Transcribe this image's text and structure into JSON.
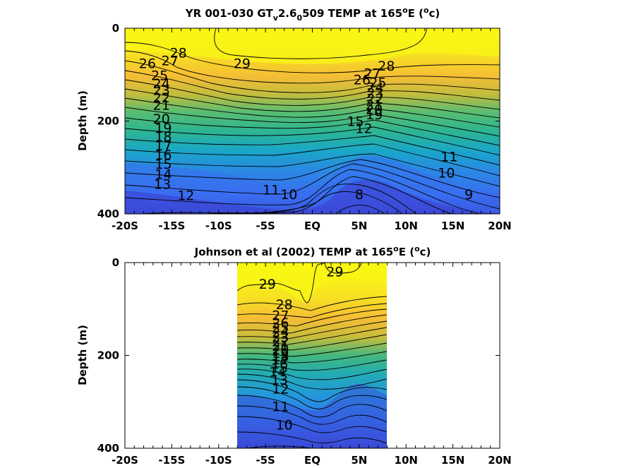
{
  "colors": {
    "warm": "#f9fb0e",
    "orange": "#f5bd35",
    "green": "#2fb58f",
    "cyan": "#1aa7c8",
    "blue": "#3a6ef0",
    "deep": "#3c3fd0",
    "contour": "#000000"
  },
  "chart_data": [
    {
      "type": "heatmap",
      "title_parts": {
        "a": "YR 001-030 GT",
        "sub_v": "v",
        "b": "2.6",
        "sub_0": "0",
        "c": "509 TEMP at 165",
        "sup_o": "o",
        "d": "E (",
        "sup_o2": "o",
        "e": "c)"
      },
      "ylabel": "Depth (m)",
      "xlabel": "",
      "x_ticks": [
        "-20S",
        "-15S",
        "-10S",
        "-5S",
        "EQ",
        "5N",
        "10N",
        "15N",
        "20N"
      ],
      "x_tick_values": [
        -20,
        -15,
        -10,
        -5,
        0,
        5,
        10,
        15,
        20
      ],
      "y_ticks": [
        "0",
        "200",
        "400"
      ],
      "y_tick_values": [
        0,
        200,
        400
      ],
      "xlim": [
        -20,
        20
      ],
      "ylim": [
        0,
        400
      ],
      "y_reversed": true,
      "data_extent": [
        -20,
        20
      ],
      "contour_labels": [
        {
          "text": "28",
          "lat": -14.3,
          "depth": 63
        },
        {
          "text": "27",
          "lat": -15.2,
          "depth": 80
        },
        {
          "text": "26",
          "lat": -17.6,
          "depth": 86
        },
        {
          "text": "29",
          "lat": -7.5,
          "depth": 86
        },
        {
          "text": "25",
          "lat": -16.3,
          "depth": 112
        },
        {
          "text": "24",
          "lat": -16.1,
          "depth": 129
        },
        {
          "text": "23",
          "lat": -16.1,
          "depth": 144
        },
        {
          "text": "22",
          "lat": -16.1,
          "depth": 160
        },
        {
          "text": "21",
          "lat": -16.1,
          "depth": 176
        },
        {
          "text": "20",
          "lat": -16.1,
          "depth": 205
        },
        {
          "text": "19",
          "lat": -15.9,
          "depth": 225
        },
        {
          "text": "18",
          "lat": -15.9,
          "depth": 243
        },
        {
          "text": "17",
          "lat": -15.9,
          "depth": 263
        },
        {
          "text": "16",
          "lat": -15.9,
          "depth": 283
        },
        {
          "text": "15",
          "lat": -15.9,
          "depth": 303
        },
        {
          "text": "14",
          "lat": -15.9,
          "depth": 325
        },
        {
          "text": "13",
          "lat": -16.0,
          "depth": 346
        },
        {
          "text": "12",
          "lat": -13.5,
          "depth": 370
        },
        {
          "text": "11",
          "lat": -4.4,
          "depth": 358
        },
        {
          "text": "10",
          "lat": -2.5,
          "depth": 368
        },
        {
          "text": "28",
          "lat": 7.9,
          "depth": 91
        },
        {
          "text": "27",
          "lat": 6.4,
          "depth": 107
        },
        {
          "text": "26",
          "lat": 5.3,
          "depth": 121
        },
        {
          "text": "25",
          "lat": 7.0,
          "depth": 127
        },
        {
          "text": "24",
          "lat": 6.7,
          "depth": 138
        },
        {
          "text": "23",
          "lat": 6.7,
          "depth": 150
        },
        {
          "text": "22",
          "lat": 6.7,
          "depth": 162
        },
        {
          "text": "21",
          "lat": 6.6,
          "depth": 175
        },
        {
          "text": "20",
          "lat": 6.6,
          "depth": 185
        },
        {
          "text": "19",
          "lat": 6.6,
          "depth": 196
        },
        {
          "text": "15",
          "lat": 4.6,
          "depth": 211
        },
        {
          "text": "12",
          "lat": 5.5,
          "depth": 226
        },
        {
          "text": "11",
          "lat": 14.6,
          "depth": 287
        },
        {
          "text": "10",
          "lat": 14.3,
          "depth": 322
        },
        {
          "text": "9",
          "lat": 16.7,
          "depth": 368
        },
        {
          "text": "8",
          "lat": 5.0,
          "depth": 368
        }
      ]
    },
    {
      "type": "heatmap",
      "title_parts": {
        "a": "Johnson et al (2002) TEMP at 165",
        "sup_o": "o",
        "b": "E (",
        "sup_o2": "o",
        "c": "c)"
      },
      "ylabel": "Depth (m)",
      "xlabel": "",
      "x_ticks": [
        "-20S",
        "-15S",
        "-10S",
        "-5S",
        "EQ",
        "5N",
        "10N",
        "15N",
        "20N"
      ],
      "x_tick_values": [
        -20,
        -15,
        -10,
        -5,
        0,
        5,
        10,
        15,
        20
      ],
      "y_ticks": [
        "0",
        "200",
        "400"
      ],
      "y_tick_values": [
        0,
        200,
        400
      ],
      "xlim": [
        -20,
        20
      ],
      "ylim": [
        0,
        400
      ],
      "y_reversed": true,
      "data_extent": [
        -8,
        8
      ],
      "contour_labels": [
        {
          "text": "29",
          "lat": 2.4,
          "depth": 30
        },
        {
          "text": "29",
          "lat": -4.8,
          "depth": 56
        },
        {
          "text": "28",
          "lat": -3.0,
          "depth": 100
        },
        {
          "text": "27",
          "lat": -3.4,
          "depth": 124
        },
        {
          "text": "26",
          "lat": -3.4,
          "depth": 140
        },
        {
          "text": "25",
          "lat": -3.4,
          "depth": 150
        },
        {
          "text": "24",
          "lat": -3.4,
          "depth": 160
        },
        {
          "text": "23",
          "lat": -3.4,
          "depth": 170
        },
        {
          "text": "22",
          "lat": -3.4,
          "depth": 180
        },
        {
          "text": "21",
          "lat": -3.4,
          "depth": 190
        },
        {
          "text": "20",
          "lat": -3.4,
          "depth": 198
        },
        {
          "text": "19",
          "lat": -3.4,
          "depth": 205
        },
        {
          "text": "18",
          "lat": -3.4,
          "depth": 212
        },
        {
          "text": "17",
          "lat": -3.4,
          "depth": 219
        },
        {
          "text": "16",
          "lat": -3.5,
          "depth": 228
        },
        {
          "text": "15",
          "lat": -3.5,
          "depth": 237
        },
        {
          "text": "14",
          "lat": -3.7,
          "depth": 246
        },
        {
          "text": "13",
          "lat": -3.5,
          "depth": 262
        },
        {
          "text": "12",
          "lat": -3.4,
          "depth": 282
        },
        {
          "text": "11",
          "lat": -3.4,
          "depth": 320
        },
        {
          "text": "10",
          "lat": -3.0,
          "depth": 360
        }
      ]
    }
  ]
}
